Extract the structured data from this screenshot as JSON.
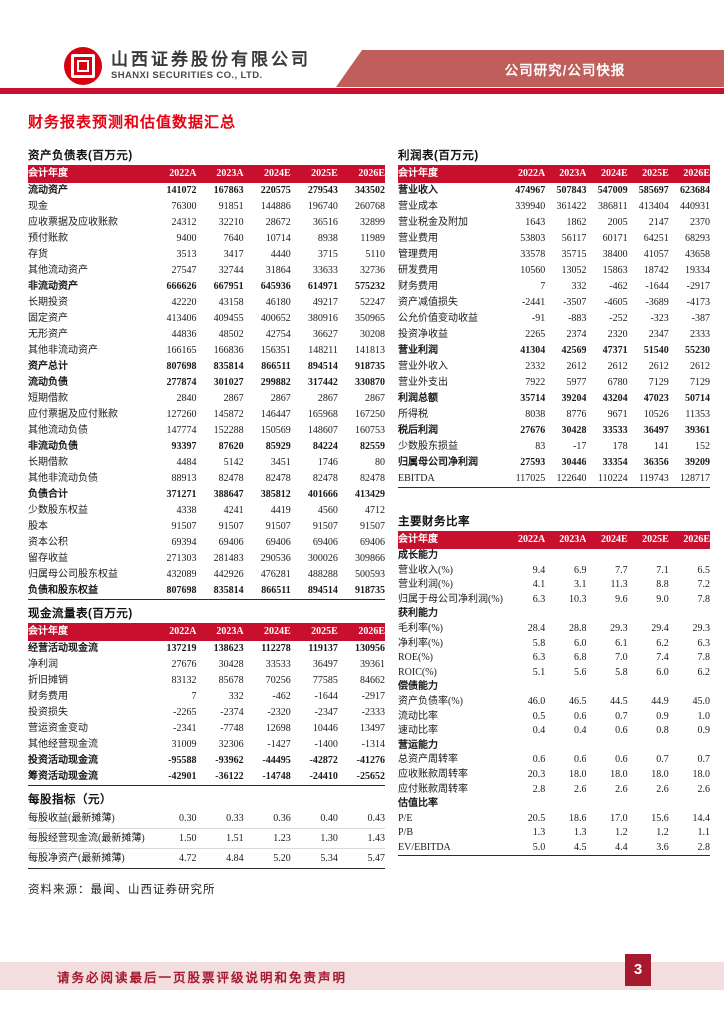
{
  "header": {
    "company_name_cn": "山西证券股份有限公司",
    "company_name_en": "SHANXI SECURITIES CO., LTD.",
    "report_type": "公司研究/公司快报"
  },
  "page_title": "财务报表预测和估值数据汇总",
  "source_note": "资料来源：最闻、山西证券研究所",
  "footer": {
    "disclaimer": "请务必阅读最后一页股票评级说明和免责声明",
    "page_number": "3"
  },
  "colors": {
    "table_header_red": "#C8102E",
    "banner_red": "#C05E5C",
    "title_red": "#E60012",
    "logo_red": "#D7000F",
    "footer_band_pink": "#F2DEDE",
    "footer_dark_red": "#A6192E"
  },
  "tables": {
    "balance_sheet": {
      "title": "资产负债表(百万元)",
      "header": [
        "会计年度",
        "2022A",
        "2023A",
        "2024E",
        "2025E",
        "2026E"
      ],
      "rows": [
        {
          "label": "流动资产",
          "bold": true,
          "values": [
            "141072",
            "167863",
            "220575",
            "279543",
            "343502"
          ]
        },
        {
          "label": "现金",
          "values": [
            "76300",
            "91851",
            "144886",
            "196740",
            "260768"
          ]
        },
        {
          "label": "应收票据及应收账款",
          "values": [
            "24312",
            "32210",
            "28672",
            "36516",
            "32899"
          ]
        },
        {
          "label": "预付账款",
          "values": [
            "9400",
            "7640",
            "10714",
            "8938",
            "11989"
          ]
        },
        {
          "label": "存货",
          "values": [
            "3513",
            "3417",
            "4440",
            "3715",
            "5110"
          ]
        },
        {
          "label": "其他流动资产",
          "values": [
            "27547",
            "32744",
            "31864",
            "33633",
            "32736"
          ]
        },
        {
          "label": "非流动资产",
          "bold": true,
          "values": [
            "666626",
            "667951",
            "645936",
            "614971",
            "575232"
          ]
        },
        {
          "label": "长期投资",
          "values": [
            "42220",
            "43158",
            "46180",
            "49217",
            "52247"
          ]
        },
        {
          "label": "固定资产",
          "values": [
            "413406",
            "409455",
            "400652",
            "380916",
            "350965"
          ]
        },
        {
          "label": "无形资产",
          "values": [
            "44836",
            "48502",
            "42754",
            "36627",
            "30208"
          ]
        },
        {
          "label": "其他非流动资产",
          "values": [
            "166165",
            "166836",
            "156351",
            "148211",
            "141813"
          ]
        },
        {
          "label": "资产总计",
          "bold": true,
          "values": [
            "807698",
            "835814",
            "866511",
            "894514",
            "918735"
          ]
        },
        {
          "label": "流动负债",
          "bold": true,
          "values": [
            "277874",
            "301027",
            "299882",
            "317442",
            "330870"
          ]
        },
        {
          "label": "短期借款",
          "values": [
            "2840",
            "2867",
            "2867",
            "2867",
            "2867"
          ]
        },
        {
          "label": "应付票据及应付账款",
          "values": [
            "127260",
            "145872",
            "146447",
            "165968",
            "167250"
          ]
        },
        {
          "label": "其他流动负债",
          "values": [
            "147774",
            "152288",
            "150569",
            "148607",
            "160753"
          ]
        },
        {
          "label": "非流动负债",
          "bold": true,
          "values": [
            "93397",
            "87620",
            "85929",
            "84224",
            "82559"
          ]
        },
        {
          "label": "长期借款",
          "values": [
            "4484",
            "5142",
            "3451",
            "1746",
            "80"
          ]
        },
        {
          "label": "其他非流动负债",
          "values": [
            "88913",
            "82478",
            "82478",
            "82478",
            "82478"
          ]
        },
        {
          "label": "负债合计",
          "bold": true,
          "values": [
            "371271",
            "388647",
            "385812",
            "401666",
            "413429"
          ]
        },
        {
          "label": "少数股东权益",
          "values": [
            "4338",
            "4241",
            "4419",
            "4560",
            "4712"
          ]
        },
        {
          "label": "股本",
          "values": [
            "91507",
            "91507",
            "91507",
            "91507",
            "91507"
          ]
        },
        {
          "label": "资本公积",
          "values": [
            "69394",
            "69406",
            "69406",
            "69406",
            "69406"
          ]
        },
        {
          "label": "留存收益",
          "values": [
            "271303",
            "281483",
            "290536",
            "300026",
            "309866"
          ]
        },
        {
          "label": "归属母公司股东权益",
          "values": [
            "432089",
            "442926",
            "476281",
            "488288",
            "500593"
          ]
        },
        {
          "label": "负债和股东权益",
          "bold": true,
          "values": [
            "807698",
            "835814",
            "866511",
            "894514",
            "918735"
          ]
        }
      ]
    },
    "cash_flow": {
      "title": "现金流量表(百万元)",
      "header": [
        "会计年度",
        "2022A",
        "2023A",
        "2024E",
        "2025E",
        "2026E"
      ],
      "rows": [
        {
          "label": "经营活动现金流",
          "bold": true,
          "values": [
            "137219",
            "138623",
            "112278",
            "119137",
            "130956"
          ]
        },
        {
          "label": "净利润",
          "indent": true,
          "values": [
            "27676",
            "30428",
            "33533",
            "36497",
            "39361"
          ]
        },
        {
          "label": "折旧摊销",
          "indent": true,
          "values": [
            "83132",
            "85678",
            "70256",
            "77585",
            "84662"
          ]
        },
        {
          "label": "财务费用",
          "indent": true,
          "values": [
            "7",
            "332",
            "-462",
            "-1644",
            "-2917"
          ]
        },
        {
          "label": "投资损失",
          "indent": true,
          "values": [
            "-2265",
            "-2374",
            "-2320",
            "-2347",
            "-2333"
          ]
        },
        {
          "label": "营运资金变动",
          "indent": true,
          "values": [
            "-2341",
            "-7748",
            "12698",
            "10446",
            "13497"
          ]
        },
        {
          "label": "其他经营现金流",
          "indent": true,
          "values": [
            "31009",
            "32306",
            "-1427",
            "-1400",
            "-1314"
          ]
        },
        {
          "label": "投资活动现金流",
          "bold": true,
          "values": [
            "-95588",
            "-93962",
            "-44495",
            "-42872",
            "-41276"
          ]
        },
        {
          "label": "筹资活动现金流",
          "bold": true,
          "values": [
            "-42901",
            "-36122",
            "-14748",
            "-24410",
            "-25652"
          ]
        }
      ]
    },
    "per_share": {
      "title": "每股指标（元）",
      "rows": [
        {
          "label": "每股收益(最新摊薄)",
          "values": [
            "0.30",
            "0.33",
            "0.36",
            "0.40",
            "0.43"
          ]
        },
        {
          "label": "每股经营现金流(最新摊薄)",
          "values": [
            "1.50",
            "1.51",
            "1.23",
            "1.30",
            "1.43"
          ]
        },
        {
          "label": "每股净资产(最新摊薄)",
          "values": [
            "4.72",
            "4.84",
            "5.20",
            "5.34",
            "5.47"
          ]
        }
      ]
    },
    "income_statement": {
      "title": "利润表(百万元)",
      "header": [
        "会计年度",
        "2022A",
        "2023A",
        "2024E",
        "2025E",
        "2026E"
      ],
      "rows": [
        {
          "label": "营业收入",
          "bold": true,
          "values": [
            "474967",
            "507843",
            "547009",
            "585697",
            "623684"
          ]
        },
        {
          "label": "营业成本",
          "values": [
            "339940",
            "361422",
            "386811",
            "413404",
            "440931"
          ]
        },
        {
          "label": "营业税金及附加",
          "values": [
            "1643",
            "1862",
            "2005",
            "2147",
            "2370"
          ]
        },
        {
          "label": "营业费用",
          "values": [
            "53803",
            "56117",
            "60171",
            "64251",
            "68293"
          ]
        },
        {
          "label": "管理费用",
          "values": [
            "33578",
            "35715",
            "38400",
            "41057",
            "43658"
          ]
        },
        {
          "label": "研发费用",
          "values": [
            "10560",
            "13052",
            "15863",
            "18742",
            "19334"
          ]
        },
        {
          "label": "财务费用",
          "values": [
            "7",
            "332",
            "-462",
            "-1644",
            "-2917"
          ]
        },
        {
          "label": "资产减值损失",
          "values": [
            "-2441",
            "-3507",
            "-4605",
            "-3689",
            "-4173"
          ]
        },
        {
          "label": "公允价值变动收益",
          "values": [
            "-91",
            "-883",
            "-252",
            "-323",
            "-387"
          ]
        },
        {
          "label": "投资净收益",
          "values": [
            "2265",
            "2374",
            "2320",
            "2347",
            "2333"
          ]
        },
        {
          "label": "营业利润",
          "bold": true,
          "values": [
            "41304",
            "42569",
            "47371",
            "51540",
            "55230"
          ]
        },
        {
          "label": "营业外收入",
          "values": [
            "2332",
            "2612",
            "2612",
            "2612",
            "2612"
          ]
        },
        {
          "label": "营业外支出",
          "values": [
            "7922",
            "5977",
            "6780",
            "7129",
            "7129"
          ]
        },
        {
          "label": "利润总额",
          "bold": true,
          "values": [
            "35714",
            "39204",
            "43204",
            "47023",
            "50714"
          ]
        },
        {
          "label": "所得税",
          "values": [
            "8038",
            "8776",
            "9671",
            "10526",
            "11353"
          ]
        },
        {
          "label": "税后利润",
          "bold": true,
          "values": [
            "27676",
            "30428",
            "33533",
            "36497",
            "39361"
          ]
        },
        {
          "label": "少数股东损益",
          "values": [
            "83",
            "-17",
            "178",
            "141",
            "152"
          ]
        },
        {
          "label": "归属母公司净利润",
          "bold": true,
          "values": [
            "27593",
            "30446",
            "33354",
            "36356",
            "39209"
          ]
        },
        {
          "label": "EBITDA",
          "values": [
            "117025",
            "122640",
            "110224",
            "119743",
            "128717"
          ]
        }
      ]
    },
    "ratios": {
      "title": "主要财务比率",
      "header": [
        "会计年度",
        "2022A",
        "2023A",
        "2024E",
        "2025E",
        "2026E"
      ],
      "rows": [
        {
          "label": "成长能力",
          "section": true
        },
        {
          "label": "营业收入(%)",
          "values": [
            "9.4",
            "6.9",
            "7.7",
            "7.1",
            "6.5"
          ]
        },
        {
          "label": "营业利润(%)",
          "values": [
            "4.1",
            "3.1",
            "11.3",
            "8.8",
            "7.2"
          ]
        },
        {
          "label": "归属于母公司净利润(%)",
          "values": [
            "6.3",
            "10.3",
            "9.6",
            "9.0",
            "7.8"
          ]
        },
        {
          "label": "获利能力",
          "section": true
        },
        {
          "label": "毛利率(%)",
          "values": [
            "28.4",
            "28.8",
            "29.3",
            "29.4",
            "29.3"
          ]
        },
        {
          "label": "净利率(%)",
          "values": [
            "5.8",
            "6.0",
            "6.1",
            "6.2",
            "6.3"
          ]
        },
        {
          "label": "ROE(%)",
          "values": [
            "6.3",
            "6.8",
            "7.0",
            "7.4",
            "7.8"
          ]
        },
        {
          "label": "ROIC(%)",
          "values": [
            "5.1",
            "5.6",
            "5.8",
            "6.0",
            "6.2"
          ]
        },
        {
          "label": "偿债能力",
          "section": true
        },
        {
          "label": "资产负债率(%)",
          "values": [
            "46.0",
            "46.5",
            "44.5",
            "44.9",
            "45.0"
          ]
        },
        {
          "label": "流动比率",
          "values": [
            "0.5",
            "0.6",
            "0.7",
            "0.9",
            "1.0"
          ]
        },
        {
          "label": "速动比率",
          "values": [
            "0.4",
            "0.4",
            "0.6",
            "0.8",
            "0.9"
          ]
        },
        {
          "label": "营运能力",
          "section": true
        },
        {
          "label": "总资产周转率",
          "values": [
            "0.6",
            "0.6",
            "0.6",
            "0.7",
            "0.7"
          ]
        },
        {
          "label": "应收账款周转率",
          "values": [
            "20.3",
            "18.0",
            "18.0",
            "18.0",
            "18.0"
          ]
        },
        {
          "label": "应付账款周转率",
          "values": [
            "2.8",
            "2.6",
            "2.6",
            "2.6",
            "2.6"
          ]
        },
        {
          "label": "估值比率",
          "section": true
        },
        {
          "label": "P/E",
          "values": [
            "20.5",
            "18.6",
            "17.0",
            "15.6",
            "14.4"
          ]
        },
        {
          "label": "P/B",
          "values": [
            "1.3",
            "1.3",
            "1.2",
            "1.2",
            "1.1"
          ]
        },
        {
          "label": "EV/EBITDA",
          "values": [
            "5.0",
            "4.5",
            "4.4",
            "3.6",
            "2.8"
          ]
        }
      ]
    }
  }
}
